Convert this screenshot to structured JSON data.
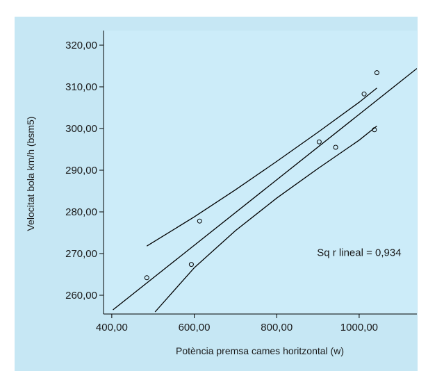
{
  "chart_data": {
    "type": "scatter",
    "title": "",
    "xlabel": "Potència premsa cames horitzontal (w)",
    "ylabel": "Velocitat bola km/h (bsm5)",
    "xlim": [
      380,
      1140
    ],
    "ylim": [
      255.5,
      323.5
    ],
    "x_ticks": [
      400,
      600,
      800,
      1000
    ],
    "x_tick_labels": [
      "400,00",
      "600,00",
      "800,00",
      "1000,00"
    ],
    "y_ticks": [
      260,
      270,
      280,
      290,
      300,
      310,
      320
    ],
    "y_tick_labels": [
      "260,00",
      "270,00",
      "280,00",
      "290,00",
      "300,00",
      "310,00",
      "320,00"
    ],
    "grid": false,
    "points": [
      {
        "x": 485,
        "y": 264.2
      },
      {
        "x": 593,
        "y": 267.4
      },
      {
        "x": 613,
        "y": 277.8
      },
      {
        "x": 903,
        "y": 296.8
      },
      {
        "x": 943,
        "y": 295.5
      },
      {
        "x": 1012,
        "y": 308.3
      },
      {
        "x": 1037,
        "y": 299.7
      },
      {
        "x": 1043,
        "y": 313.4
      }
    ],
    "fit_line": {
      "x": [
        403,
        1140
      ],
      "y": [
        256.5,
        314.4
      ]
    },
    "upper_band": {
      "x": [
        485,
        600,
        700,
        800,
        900,
        1000,
        1043
      ],
      "y": [
        271.8,
        278.8,
        285.3,
        292.1,
        299.1,
        306.3,
        309.7
      ]
    },
    "lower_band": {
      "x": [
        505,
        600,
        700,
        800,
        900,
        1000,
        1043
      ],
      "y": [
        256.0,
        266.6,
        275.5,
        283.3,
        290.4,
        297.2,
        300.6
      ]
    },
    "annotations": [
      {
        "text": "Sq r lineal = 0,934",
        "x": 1000,
        "y": 269.4
      }
    ],
    "colors": {
      "page_background": "#c6e7f4",
      "plot_background": "#ccecf9",
      "axis": "#000000",
      "line": "#000000",
      "marker": "#000000"
    }
  }
}
